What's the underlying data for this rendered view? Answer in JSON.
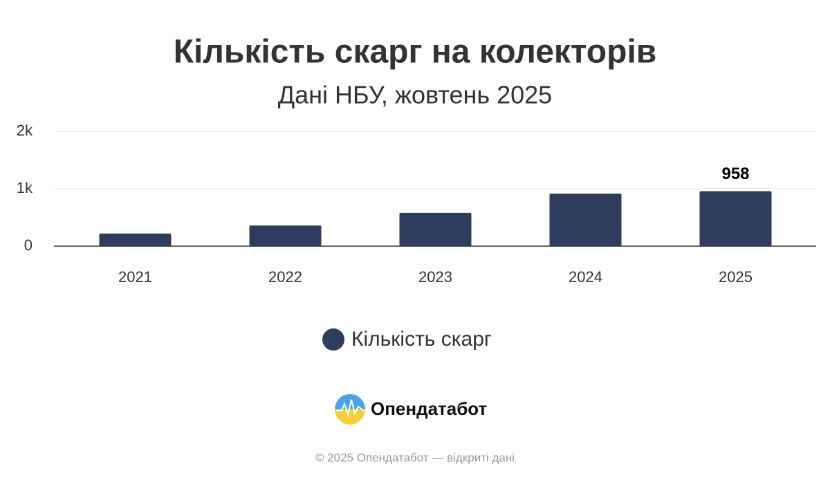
{
  "chart_data": {
    "type": "bar",
    "title": "Кількість скарг на колекторів",
    "subtitle": "Дані НБУ, жовтень 2025",
    "categories": [
      "2021",
      "2022",
      "2023",
      "2024",
      "2025"
    ],
    "series": [
      {
        "name": "Кількість скарг",
        "color": "#2e3d5e",
        "values": [
          220,
          360,
          580,
          915,
          958
        ],
        "value_labels": [
          null,
          null,
          null,
          null,
          "958"
        ]
      }
    ],
    "ylim": [
      0,
      2000
    ],
    "yticks": [
      0,
      {
        "value": 1000,
        "label": "1k"
      },
      {
        "value": 2000,
        "label": "2k"
      }
    ],
    "grid": true
  },
  "footer": {
    "brand": "Опендатабот",
    "copyright": "© 2025 Опендатабот — відкриті дані"
  }
}
